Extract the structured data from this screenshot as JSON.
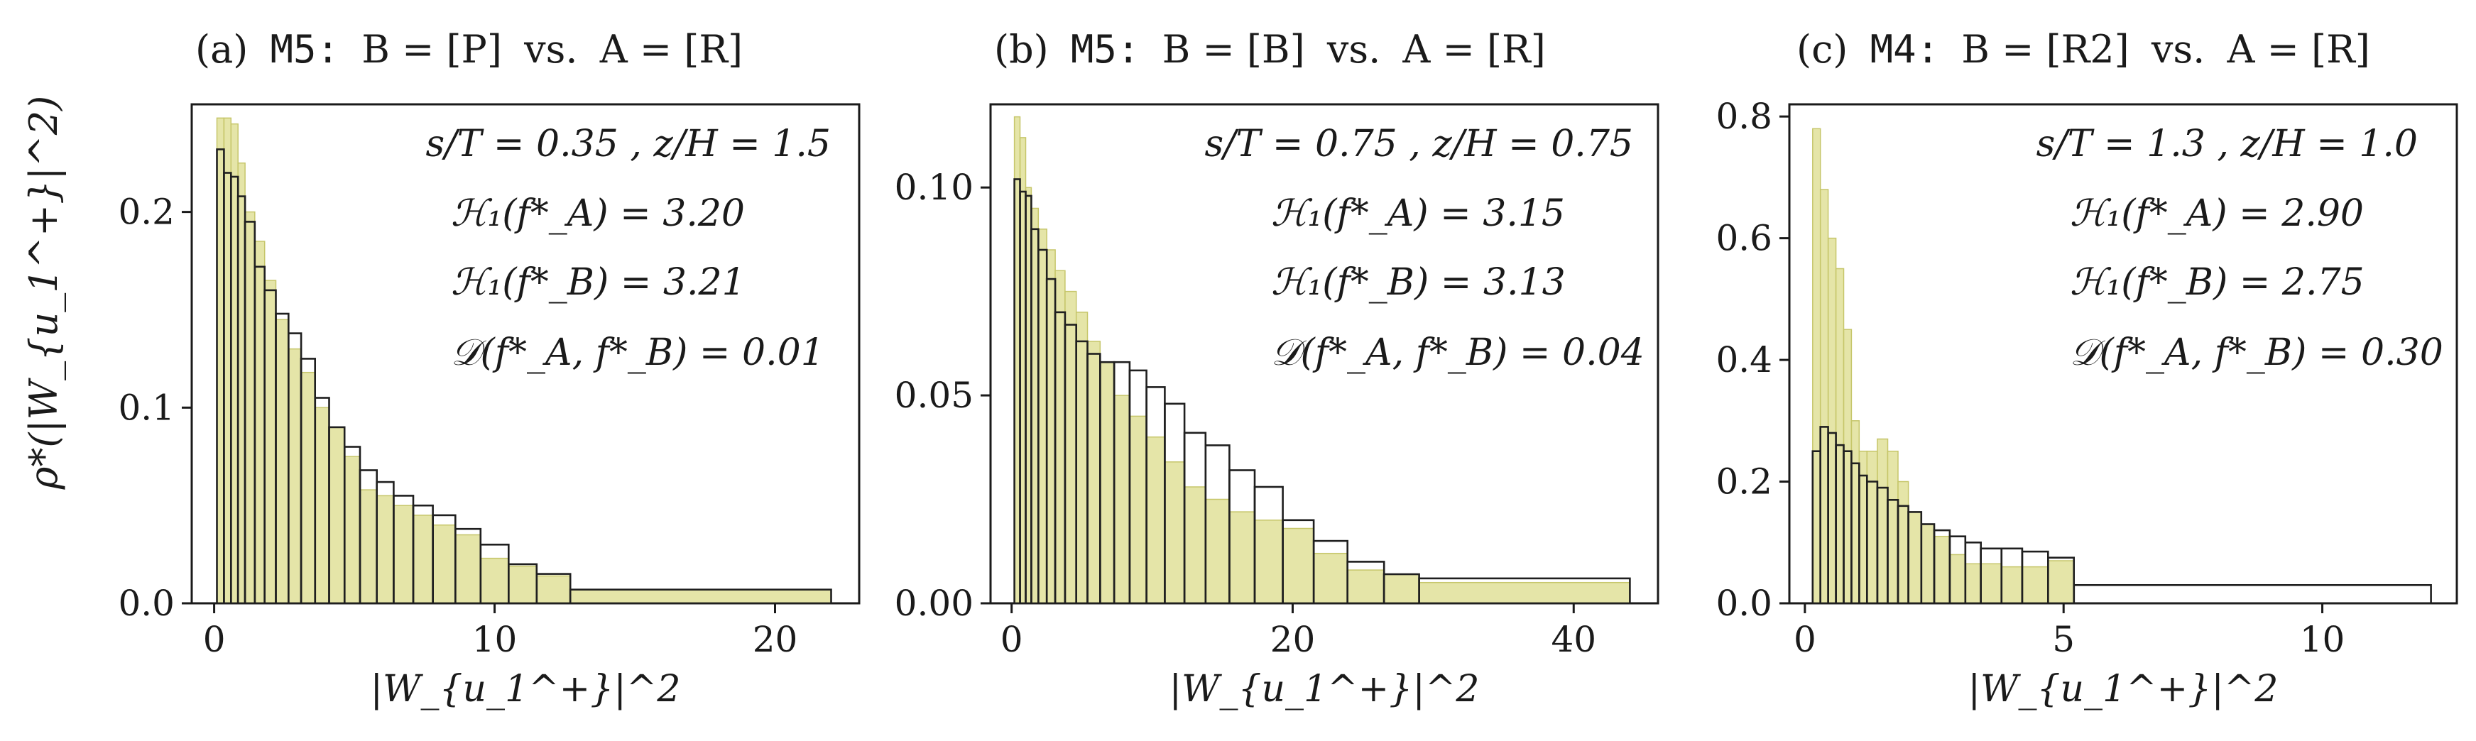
{
  "figure": {
    "ylabel": "ρ*(|W_{u_1^+}|^2)",
    "xlabel": "|W_{u_1^+}|^2",
    "colors": {
      "A_fill": "#dede8f",
      "A_edge": "#c6c66a",
      "B_edge": "#1f1f1f",
      "axes": "#1a1a1a"
    }
  },
  "panels": [
    {
      "tag": "(a)",
      "model": "M5:",
      "B_label": "B = [P]",
      "vs": "vs.",
      "A_label": "A = [R]",
      "params": "s/T = 0.35 ,   z/H = 1.5",
      "stats": [
        "ℋ₁(f*_A) = 3.20",
        "ℋ₁(f*_B) = 3.21",
        "𝒟(f*_A, f*_B) = 0.01"
      ],
      "xticks": [
        "0",
        "10",
        "20"
      ],
      "yticks": [
        "0.0",
        "0.1",
        "0.2"
      ]
    },
    {
      "tag": "(b)",
      "model": "M5:",
      "B_label": "B = [B]",
      "vs": "vs.",
      "A_label": "A = [R]",
      "params": "s/T = 0.75 ,   z/H = 0.75",
      "stats": [
        "ℋ₁(f*_A) = 3.15",
        "ℋ₁(f*_B) = 3.13",
        "𝒟(f*_A, f*_B) = 0.04"
      ],
      "xticks": [
        "0",
        "20",
        "40"
      ],
      "yticks": [
        "0.00",
        "0.05",
        "0.10"
      ]
    },
    {
      "tag": "(c)",
      "model": "M4:",
      "B_label": "B = [R2]",
      "vs": "vs.",
      "A_label": "A = [R]",
      "params": "s/T = 1.3 ,   z/H = 1.0",
      "stats": [
        "ℋ₁(f*_A) = 2.90",
        "ℋ₁(f*_B) = 2.75",
        "𝒟(f*_A, f*_B) = 0.30"
      ],
      "xticks": [
        "0",
        "5",
        "10"
      ],
      "yticks": [
        "0.0",
        "0.2",
        "0.4",
        "0.6",
        "0.8"
      ]
    }
  ],
  "chart_data": [
    {
      "type": "bar",
      "subtype": "histogram",
      "xlabel": "|W_{u_1^+}|^2",
      "ylabel": "ρ*(|W_{u_1^+}|^2)",
      "xlim": [
        -0.8,
        23
      ],
      "ylim": [
        0,
        0.255
      ],
      "xticks": [
        0,
        10,
        20
      ],
      "yticks": [
        0.0,
        0.1,
        0.2
      ],
      "grid": false,
      "series": [
        {
          "name": "A = [R]",
          "style": "filled",
          "bin_edges": [
            0.1,
            0.35,
            0.6,
            0.85,
            1.1,
            1.45,
            1.8,
            2.2,
            2.65,
            3.1,
            3.6,
            4.1,
            4.65,
            5.2,
            5.8,
            6.4,
            7.1,
            7.8,
            8.6,
            9.5,
            10.5,
            11.5,
            12.7,
            22
          ],
          "values": [
            0.248,
            0.248,
            0.245,
            0.225,
            0.2,
            0.185,
            0.165,
            0.145,
            0.13,
            0.118,
            0.1,
            0.09,
            0.075,
            0.058,
            0.055,
            0.05,
            0.045,
            0.04,
            0.035,
            0.023,
            0.019,
            0.014,
            0.007
          ]
        },
        {
          "name": "B = [P]",
          "style": "outline",
          "bin_edges": [
            0.1,
            0.35,
            0.6,
            0.85,
            1.1,
            1.45,
            1.8,
            2.2,
            2.65,
            3.1,
            3.6,
            4.1,
            4.65,
            5.2,
            5.8,
            6.4,
            7.1,
            7.8,
            8.6,
            9.5,
            10.5,
            11.5,
            12.7,
            22
          ],
          "values": [
            0.232,
            0.22,
            0.218,
            0.208,
            0.195,
            0.172,
            0.16,
            0.148,
            0.138,
            0.125,
            0.105,
            0.09,
            0.08,
            0.068,
            0.062,
            0.055,
            0.05,
            0.045,
            0.038,
            0.03,
            0.02,
            0.015,
            0.007
          ]
        }
      ]
    },
    {
      "type": "bar",
      "subtype": "histogram",
      "xlabel": "|W_{u_1^+}|^2",
      "ylabel": "",
      "xlim": [
        -1.5,
        46
      ],
      "ylim": [
        0,
        0.12
      ],
      "xticks": [
        0,
        20,
        40
      ],
      "yticks": [
        0.0,
        0.05,
        0.1
      ],
      "grid": false,
      "series": [
        {
          "name": "A = [R]",
          "style": "filled",
          "bin_edges": [
            0.2,
            0.6,
            1.0,
            1.4,
            1.9,
            2.5,
            3.1,
            3.8,
            4.6,
            5.4,
            6.3,
            7.3,
            8.4,
            9.6,
            10.9,
            12.3,
            13.8,
            15.5,
            17.3,
            19.3,
            21.5,
            23.9,
            26.5,
            29,
            44
          ],
          "values": [
            0.117,
            0.112,
            0.1,
            0.095,
            0.09,
            0.085,
            0.08,
            0.075,
            0.07,
            0.063,
            0.058,
            0.05,
            0.045,
            0.04,
            0.034,
            0.028,
            0.025,
            0.022,
            0.02,
            0.018,
            0.012,
            0.008,
            0.007,
            0.005
          ]
        },
        {
          "name": "B = [B]",
          "style": "outline",
          "bin_edges": [
            0.2,
            0.6,
            1.0,
            1.4,
            1.9,
            2.5,
            3.1,
            3.8,
            4.6,
            5.4,
            6.3,
            7.3,
            8.4,
            9.6,
            10.9,
            12.3,
            13.8,
            15.5,
            17.3,
            19.3,
            21.5,
            23.9,
            26.5,
            29,
            44
          ],
          "values": [
            0.102,
            0.099,
            0.098,
            0.09,
            0.085,
            0.078,
            0.07,
            0.067,
            0.063,
            0.06,
            0.058,
            0.058,
            0.056,
            0.052,
            0.048,
            0.041,
            0.038,
            0.032,
            0.028,
            0.02,
            0.015,
            0.01,
            0.007,
            0.006
          ]
        }
      ]
    },
    {
      "type": "bar",
      "subtype": "histogram",
      "xlabel": "|W_{u_1^+}|^2",
      "ylabel": "",
      "xlim": [
        -0.3,
        12.6
      ],
      "ylim": [
        0,
        0.82
      ],
      "xticks": [
        0,
        5,
        10
      ],
      "yticks": [
        0.0,
        0.2,
        0.4,
        0.6,
        0.8
      ],
      "grid": false,
      "series": [
        {
          "name": "A = [R]",
          "style": "filled",
          "bin_edges": [
            0.15,
            0.3,
            0.45,
            0.6,
            0.75,
            0.9,
            1.05,
            1.2,
            1.4,
            1.6,
            1.8,
            2.0,
            2.25,
            2.5,
            2.8,
            3.1,
            3.4,
            3.8,
            4.2,
            4.7,
            5.2
          ],
          "values": [
            0.78,
            0.68,
            0.6,
            0.55,
            0.45,
            0.3,
            0.25,
            0.25,
            0.27,
            0.25,
            0.2,
            0.15,
            0.13,
            0.11,
            0.08,
            0.065,
            0.065,
            0.06,
            0.06,
            0.07
          ]
        },
        {
          "name": "B = [R2]",
          "style": "outline",
          "bin_edges": [
            0.15,
            0.3,
            0.45,
            0.6,
            0.75,
            0.9,
            1.05,
            1.2,
            1.4,
            1.6,
            1.8,
            2.0,
            2.25,
            2.5,
            2.8,
            3.1,
            3.4,
            3.8,
            4.2,
            4.7,
            5.2,
            12.1
          ],
          "values": [
            0.25,
            0.29,
            0.28,
            0.26,
            0.25,
            0.23,
            0.21,
            0.2,
            0.19,
            0.17,
            0.16,
            0.15,
            0.13,
            0.12,
            0.11,
            0.1,
            0.09,
            0.09,
            0.085,
            0.075,
            0.03
          ]
        }
      ]
    }
  ]
}
